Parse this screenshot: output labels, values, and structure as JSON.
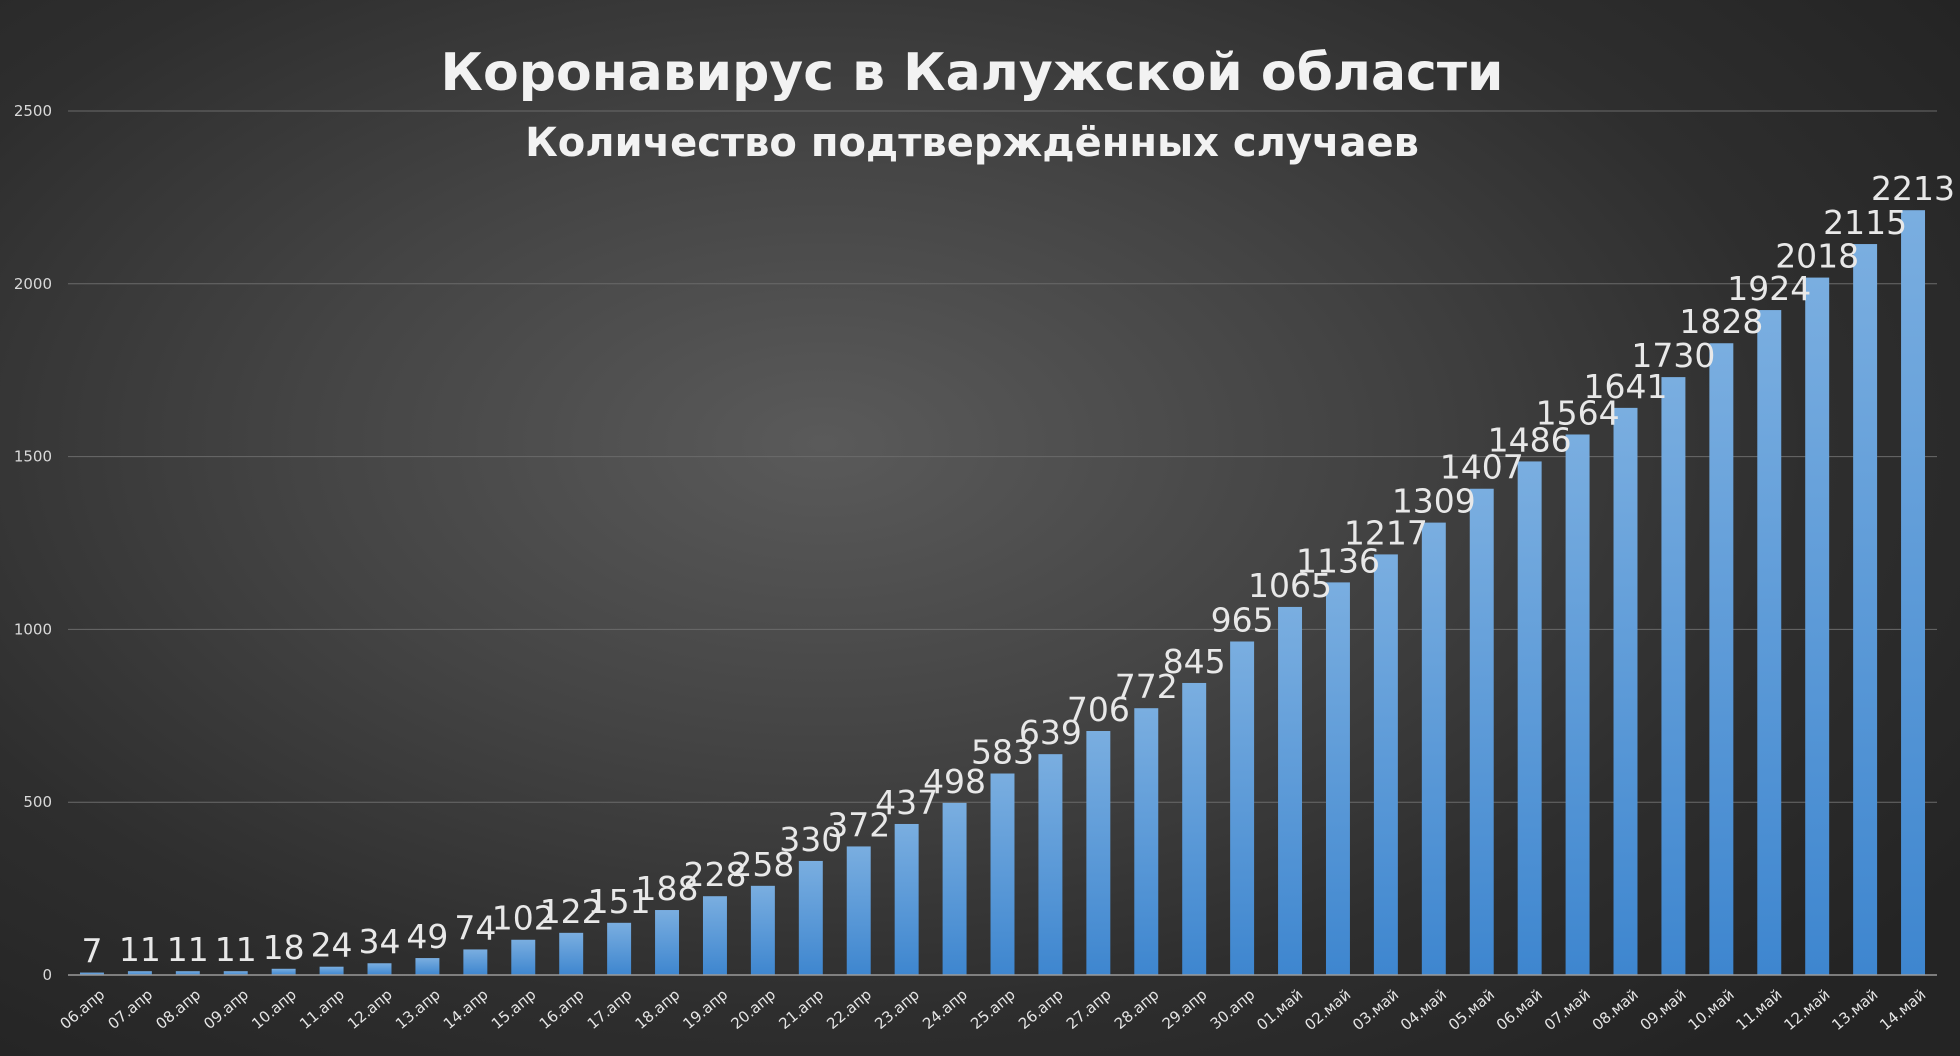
{
  "chart_data": {
    "type": "bar",
    "title": "Коронавирус в Калужской области",
    "subtitle": "Количество подтверждённых случаев",
    "xlabel": "",
    "ylabel": "",
    "ylim": [
      0,
      2500
    ],
    "yticks": [
      0,
      500,
      1000,
      1500,
      2000,
      2500
    ],
    "grid": true,
    "legend": "none",
    "categories": [
      "06.апр",
      "07.апр",
      "08.апр",
      "09.апр",
      "10.апр",
      "11.апр",
      "12.апр",
      "13.апр",
      "14.апр",
      "15.апр",
      "16.апр",
      "17.апр",
      "18.апр",
      "19.апр",
      "20.апр",
      "21.апр",
      "22.апр",
      "23.апр",
      "24.апр",
      "25.апр",
      "26.апр",
      "27.апр",
      "28.апр",
      "29.апр",
      "30.апр",
      "01.май",
      "02.май",
      "03.май",
      "04.май",
      "05.май",
      "06.май",
      "07.май",
      "08.май",
      "09.май",
      "10.май",
      "11.май",
      "12.май",
      "13.май",
      "14.май"
    ],
    "values": [
      7,
      11,
      11,
      11,
      18,
      24,
      34,
      49,
      74,
      102,
      122,
      151,
      188,
      228,
      258,
      330,
      372,
      437,
      498,
      583,
      639,
      706,
      772,
      845,
      965,
      1065,
      1136,
      1217,
      1309,
      1407,
      1486,
      1564,
      1641,
      1730,
      1828,
      1924,
      2018,
      2115,
      2213
    ],
    "colors": {
      "bar_top": "#7aaee0",
      "bar_bottom": "#3e86cf"
    }
  }
}
